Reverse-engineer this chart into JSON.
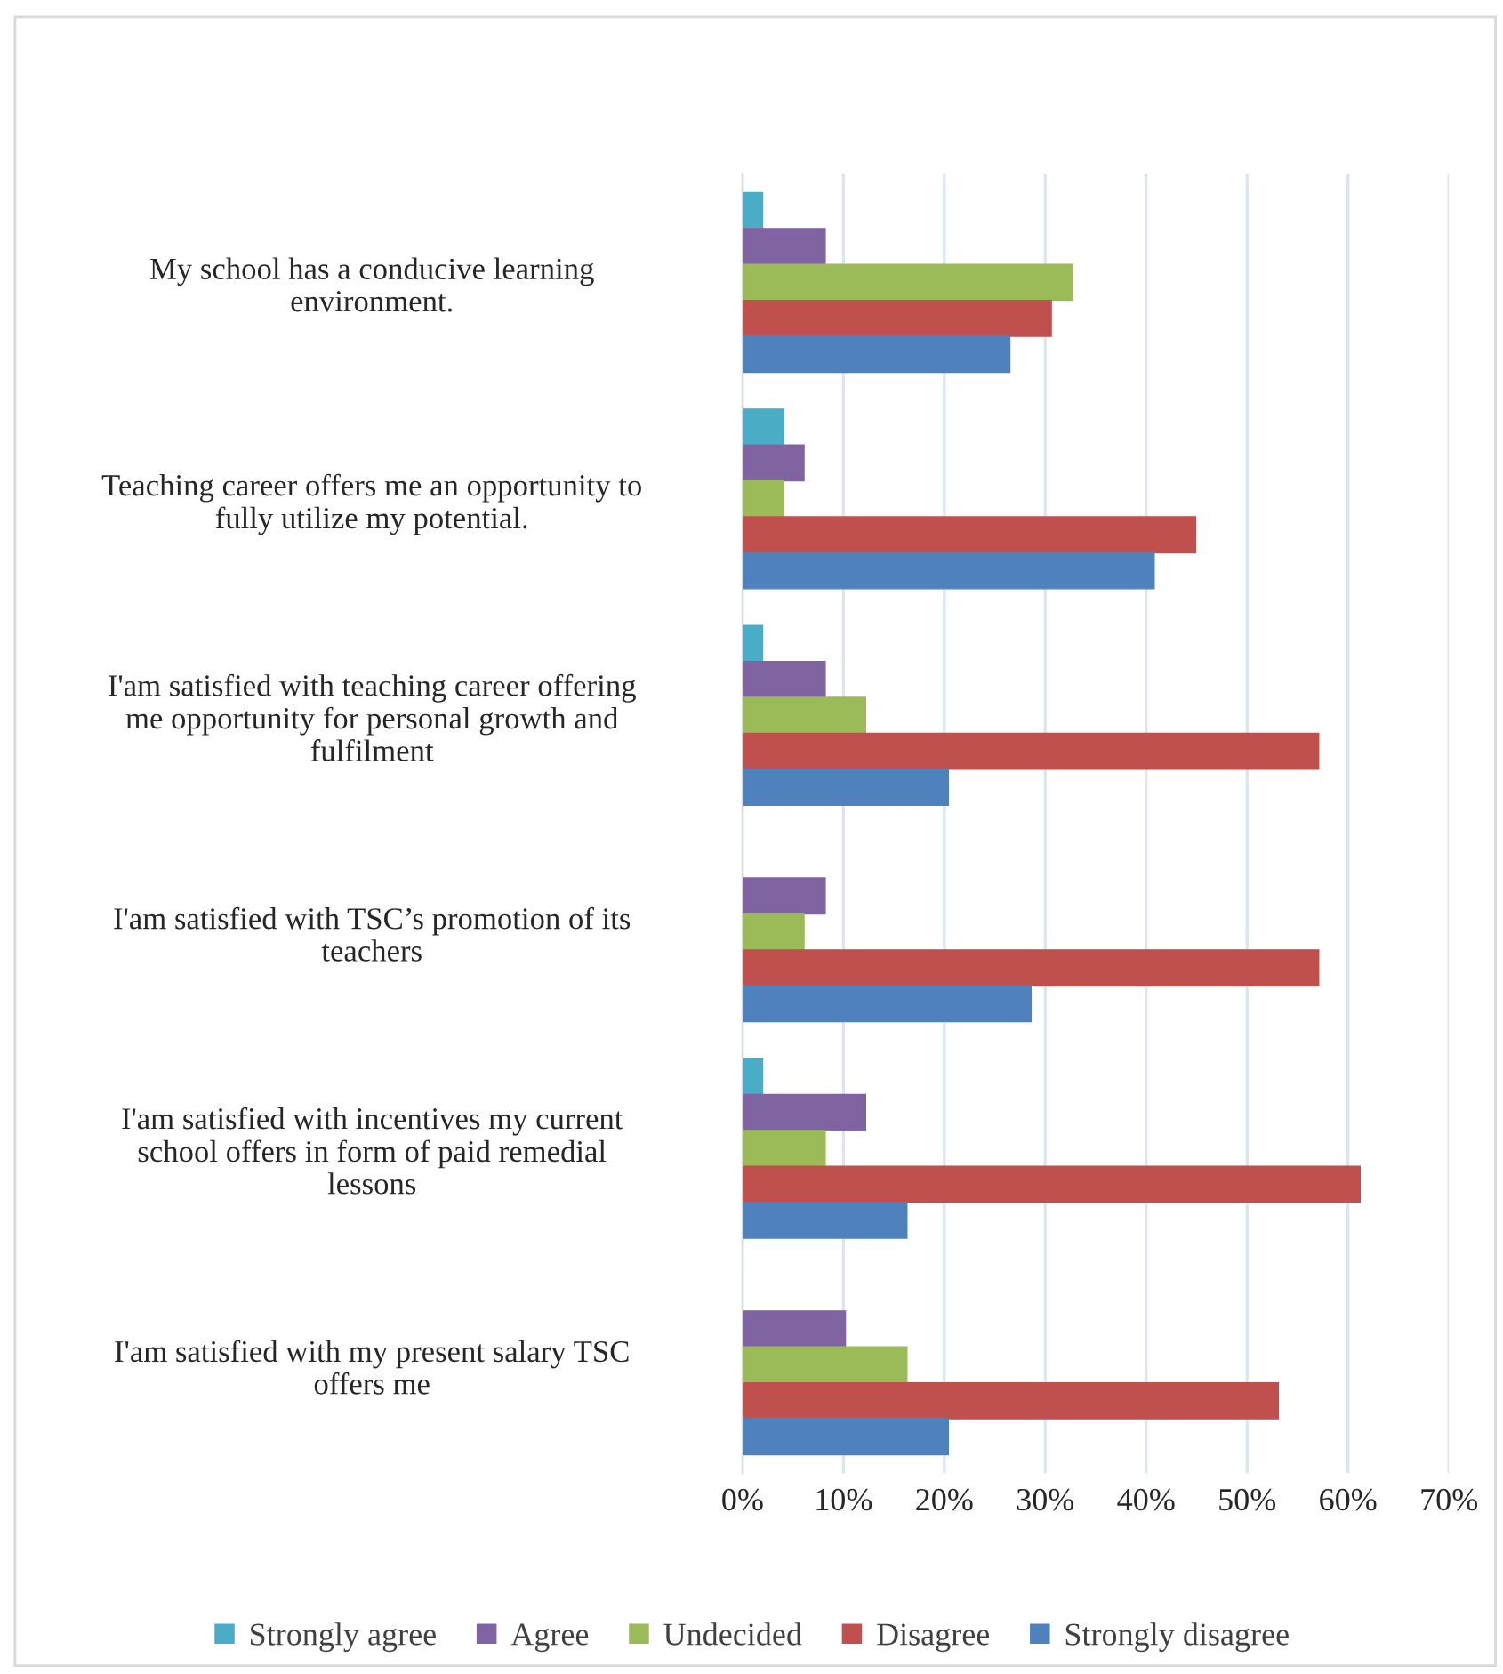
{
  "chart_data": {
    "type": "bar",
    "orientation": "horizontal",
    "categories": [
      "My school has a conducive learning\nenvironment.",
      "Teaching career offers me an opportunity to\nfully utilize my potential.",
      "I'am satisfied with teaching career offering\nme opportunity for personal growth and\nfulfilment",
      "I'am satisfied with TSC’s promotion of its\nteachers",
      "I'am satisfied with incentives my current\nschool offers in form of paid remedial\nlessons",
      "I'am satisfied with my present salary TSC\noffers me"
    ],
    "series": [
      {
        "name": "Strongly agree",
        "color": "#4bacc6",
        "values": [
          2.0,
          4.1,
          2.0,
          0,
          2.0,
          0
        ]
      },
      {
        "name": "Agree",
        "color": "#8064a2",
        "values": [
          8.2,
          6.1,
          8.2,
          8.2,
          12.2,
          10.2
        ]
      },
      {
        "name": "Undecided",
        "color": "#9bbb59",
        "values": [
          32.7,
          4.1,
          12.2,
          6.1,
          8.2,
          16.3
        ]
      },
      {
        "name": "Disagree",
        "color": "#c0504d",
        "values": [
          30.6,
          44.9,
          57.1,
          57.1,
          61.2,
          53.1
        ]
      },
      {
        "name": "Strongly disagree",
        "color": "#4f81bd",
        "values": [
          26.5,
          40.8,
          20.4,
          28.6,
          16.3,
          20.4
        ]
      }
    ],
    "xlim": [
      0,
      70
    ],
    "xticks": [
      {
        "value": 0,
        "label": "0%"
      },
      {
        "value": 10,
        "label": "10%"
      },
      {
        "value": 20,
        "label": "20%"
      },
      {
        "value": 30,
        "label": "30%"
      },
      {
        "value": 40,
        "label": "40%"
      },
      {
        "value": 50,
        "label": "50%"
      },
      {
        "value": 60,
        "label": "60%"
      },
      {
        "value": 70,
        "label": "70%"
      }
    ],
    "grid": "x",
    "legend": "bottom"
  }
}
